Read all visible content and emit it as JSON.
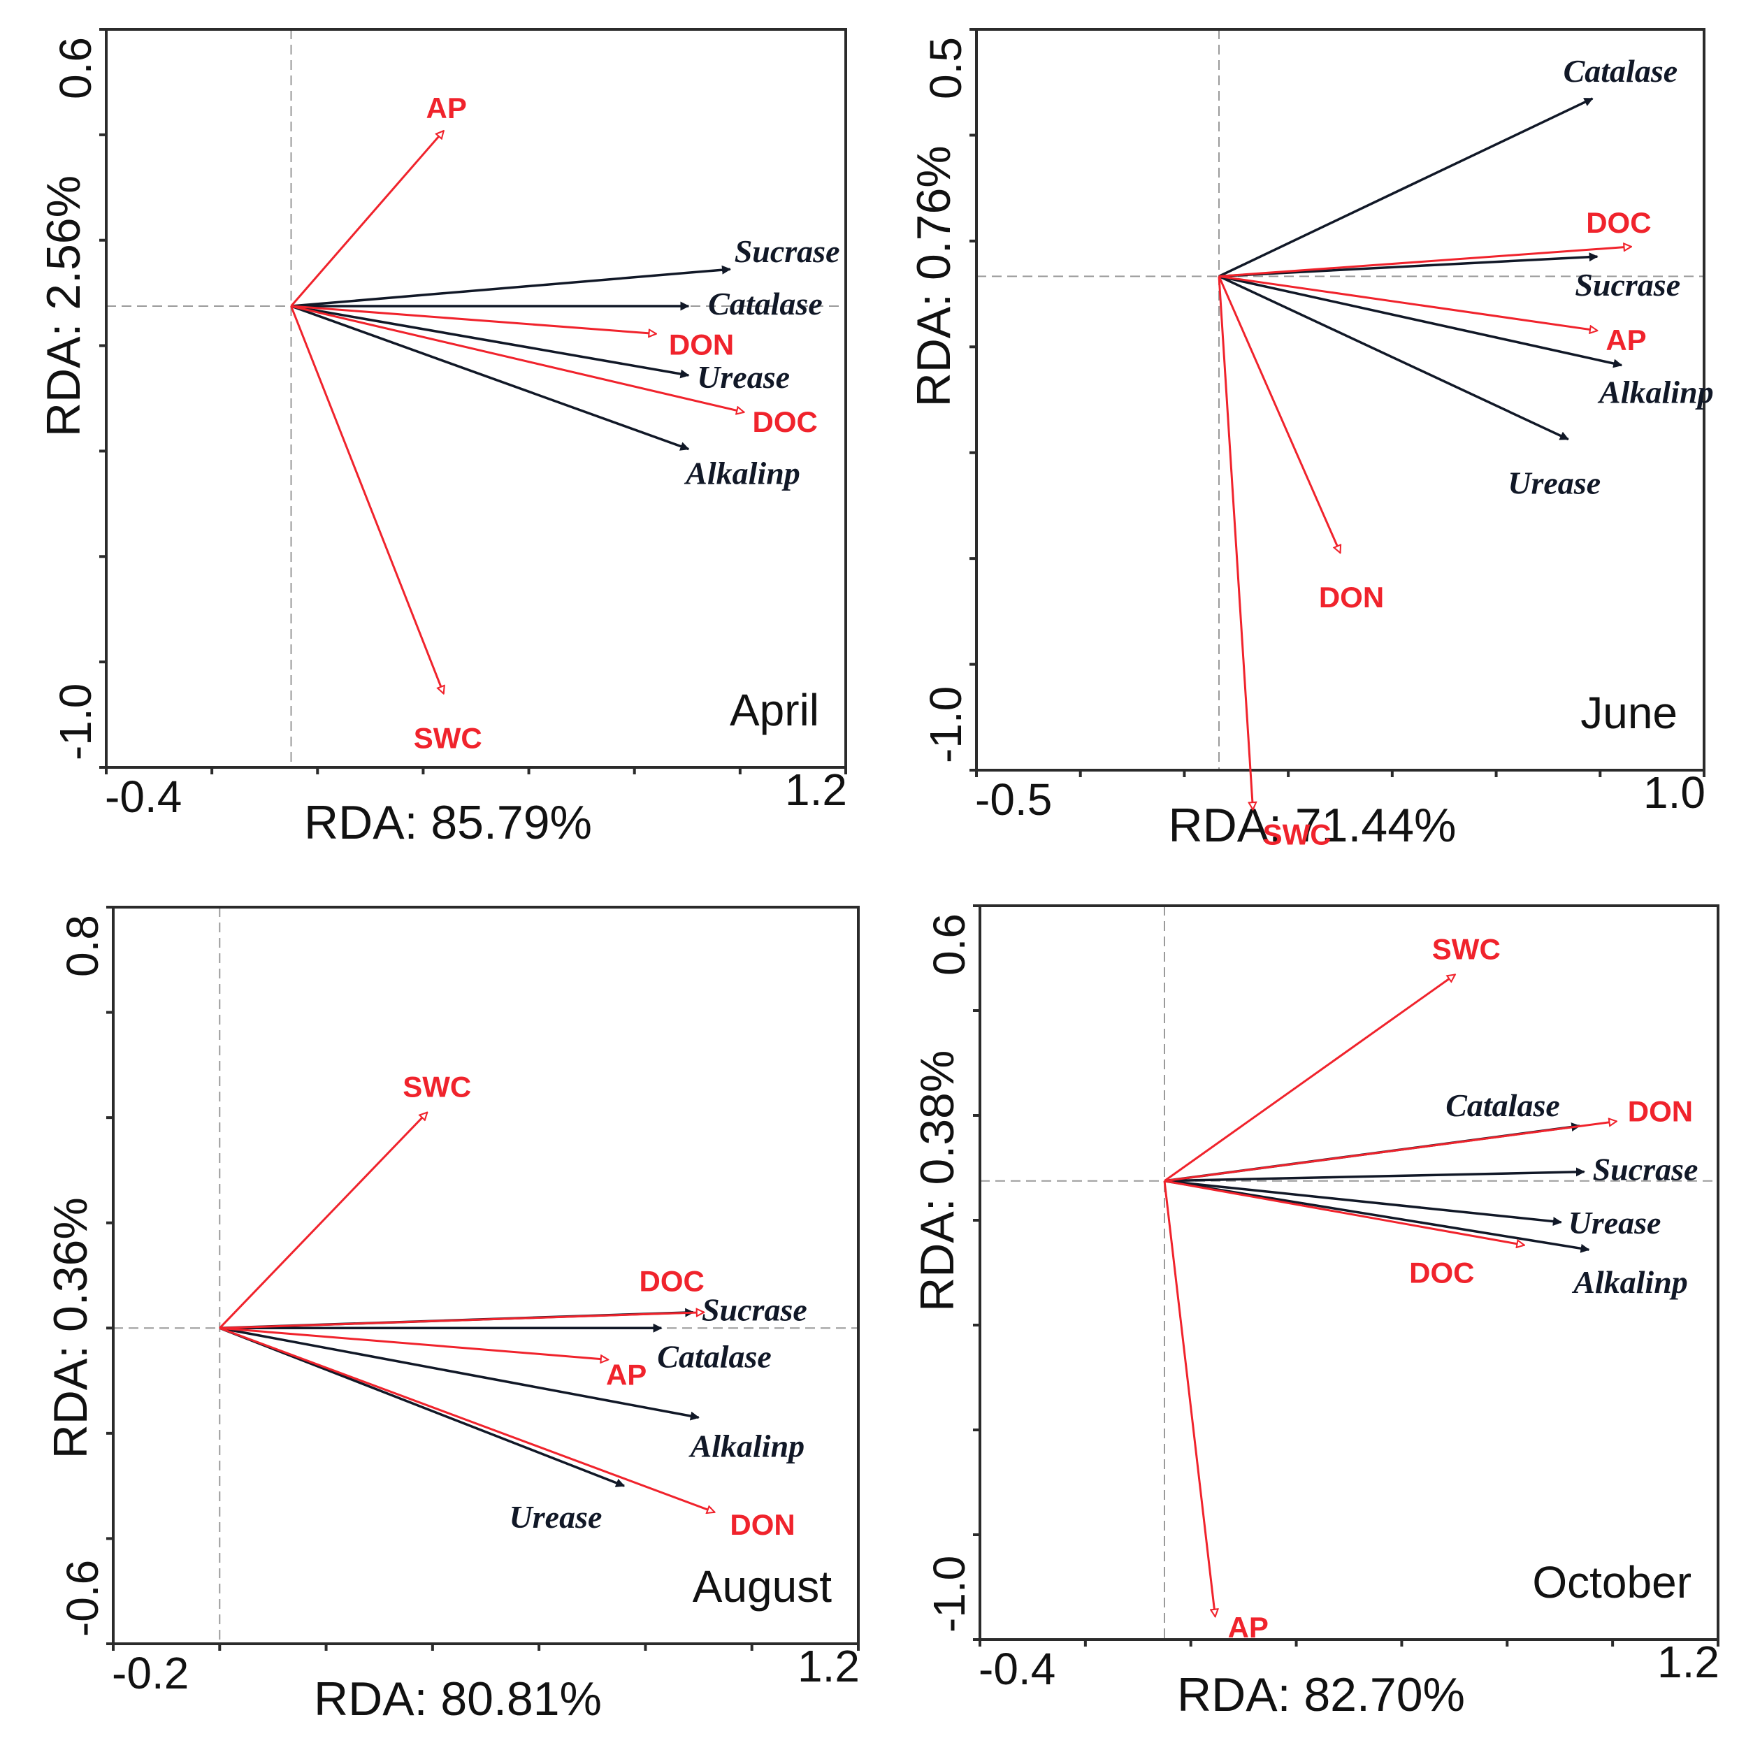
{
  "colors": {
    "species": "#111827",
    "environment": "#f0232c",
    "frame": "#2b2b2b"
  },
  "chart_data": [
    {
      "type": "scatter",
      "subtype": "rda-biplot",
      "panel_label": "April",
      "xlabel": "RDA: 85.79%",
      "ylabel": "RDA: 2.56%",
      "xlim": [
        -0.4,
        1.2
      ],
      "ylim": [
        -1.0,
        0.6
      ],
      "x_tick_labels": [
        "-0.4",
        "1.2"
      ],
      "y_tick_labels": [
        "0.6",
        "-1.0"
      ],
      "species_arrows": [
        {
          "name": "Sucrase",
          "x": 0.95,
          "y": 0.08
        },
        {
          "name": "Catalase",
          "x": 0.86,
          "y": 0.0
        },
        {
          "name": "Urease",
          "x": 0.86,
          "y": -0.15
        },
        {
          "name": "Alkalinp",
          "x": 0.86,
          "y": -0.31
        }
      ],
      "env_arrows": [
        {
          "name": "AP",
          "x": 0.33,
          "y": 0.38
        },
        {
          "name": "DON",
          "x": 0.79,
          "y": -0.06
        },
        {
          "name": "DOC",
          "x": 0.98,
          "y": -0.23
        },
        {
          "name": "SWC",
          "x": 0.33,
          "y": -0.84
        }
      ]
    },
    {
      "type": "scatter",
      "subtype": "rda-biplot",
      "panel_label": "June",
      "xlabel": "RDA: 71.44%",
      "ylabel": "RDA: 0.76%",
      "xlim": [
        -0.5,
        1.0
      ],
      "ylim": [
        -1.0,
        0.5
      ],
      "x_tick_labels": [
        "-0.5",
        "1.0"
      ],
      "y_tick_labels": [
        "0.5",
        "-1.0"
      ],
      "species_arrows": [
        {
          "name": "Catalase",
          "x": 0.77,
          "y": 0.36
        },
        {
          "name": "Sucrase",
          "x": 0.78,
          "y": 0.04
        },
        {
          "name": "Alkalinp",
          "x": 0.83,
          "y": -0.18
        },
        {
          "name": "Urease",
          "x": 0.72,
          "y": -0.33
        }
      ],
      "env_arrows": [
        {
          "name": "DOC",
          "x": 0.85,
          "y": 0.06
        },
        {
          "name": "AP",
          "x": 0.78,
          "y": -0.11
        },
        {
          "name": "DON",
          "x": 0.25,
          "y": -0.56
        },
        {
          "name": "SWC",
          "x": 0.07,
          "y": -1.08
        }
      ]
    },
    {
      "type": "scatter",
      "subtype": "rda-biplot",
      "panel_label": "August",
      "xlabel": "RDA: 80.81%",
      "ylabel": "RDA: 0.36%",
      "xlim": [
        -0.2,
        1.2
      ],
      "ylim": [
        -0.6,
        0.8
      ],
      "x_tick_labels": [
        "-0.2",
        "1.2"
      ],
      "y_tick_labels": [
        "0.8",
        "-0.6"
      ],
      "species_arrows": [
        {
          "name": "Sucrase",
          "x": 0.89,
          "y": 0.03
        },
        {
          "name": "Catalase",
          "x": 0.83,
          "y": 0.0
        },
        {
          "name": "Alkalinp",
          "x": 0.9,
          "y": -0.17
        },
        {
          "name": "Urease",
          "x": 0.76,
          "y": -0.3
        }
      ],
      "env_arrows": [
        {
          "name": "SWC",
          "x": 0.39,
          "y": 0.41
        },
        {
          "name": "DOC",
          "x": 0.91,
          "y": 0.03
        },
        {
          "name": "AP",
          "x": 0.73,
          "y": -0.06
        },
        {
          "name": "DON",
          "x": 0.93,
          "y": -0.35
        }
      ]
    },
    {
      "type": "scatter",
      "subtype": "rda-biplot",
      "panel_label": "October",
      "xlabel": "RDA: 82.70%",
      "ylabel": "RDA: 0.38%",
      "xlim": [
        -0.4,
        1.2
      ],
      "ylim": [
        -1.0,
        0.6
      ],
      "x_tick_labels": [
        "-0.4",
        "1.2"
      ],
      "y_tick_labels": [
        "0.6",
        "-1.0"
      ],
      "species_arrows": [
        {
          "name": "Catalase",
          "x": 0.9,
          "y": 0.12
        },
        {
          "name": "Sucrase",
          "x": 0.91,
          "y": 0.02
        },
        {
          "name": "Urease",
          "x": 0.86,
          "y": -0.09
        },
        {
          "name": "Alkalinp",
          "x": 0.92,
          "y": -0.15
        }
      ],
      "env_arrows": [
        {
          "name": "SWC",
          "x": 0.63,
          "y": 0.45
        },
        {
          "name": "DON",
          "x": 0.98,
          "y": 0.13
        },
        {
          "name": "DOC",
          "x": 0.78,
          "y": -0.14
        },
        {
          "name": "AP",
          "x": 0.11,
          "y": -0.95
        }
      ]
    }
  ]
}
